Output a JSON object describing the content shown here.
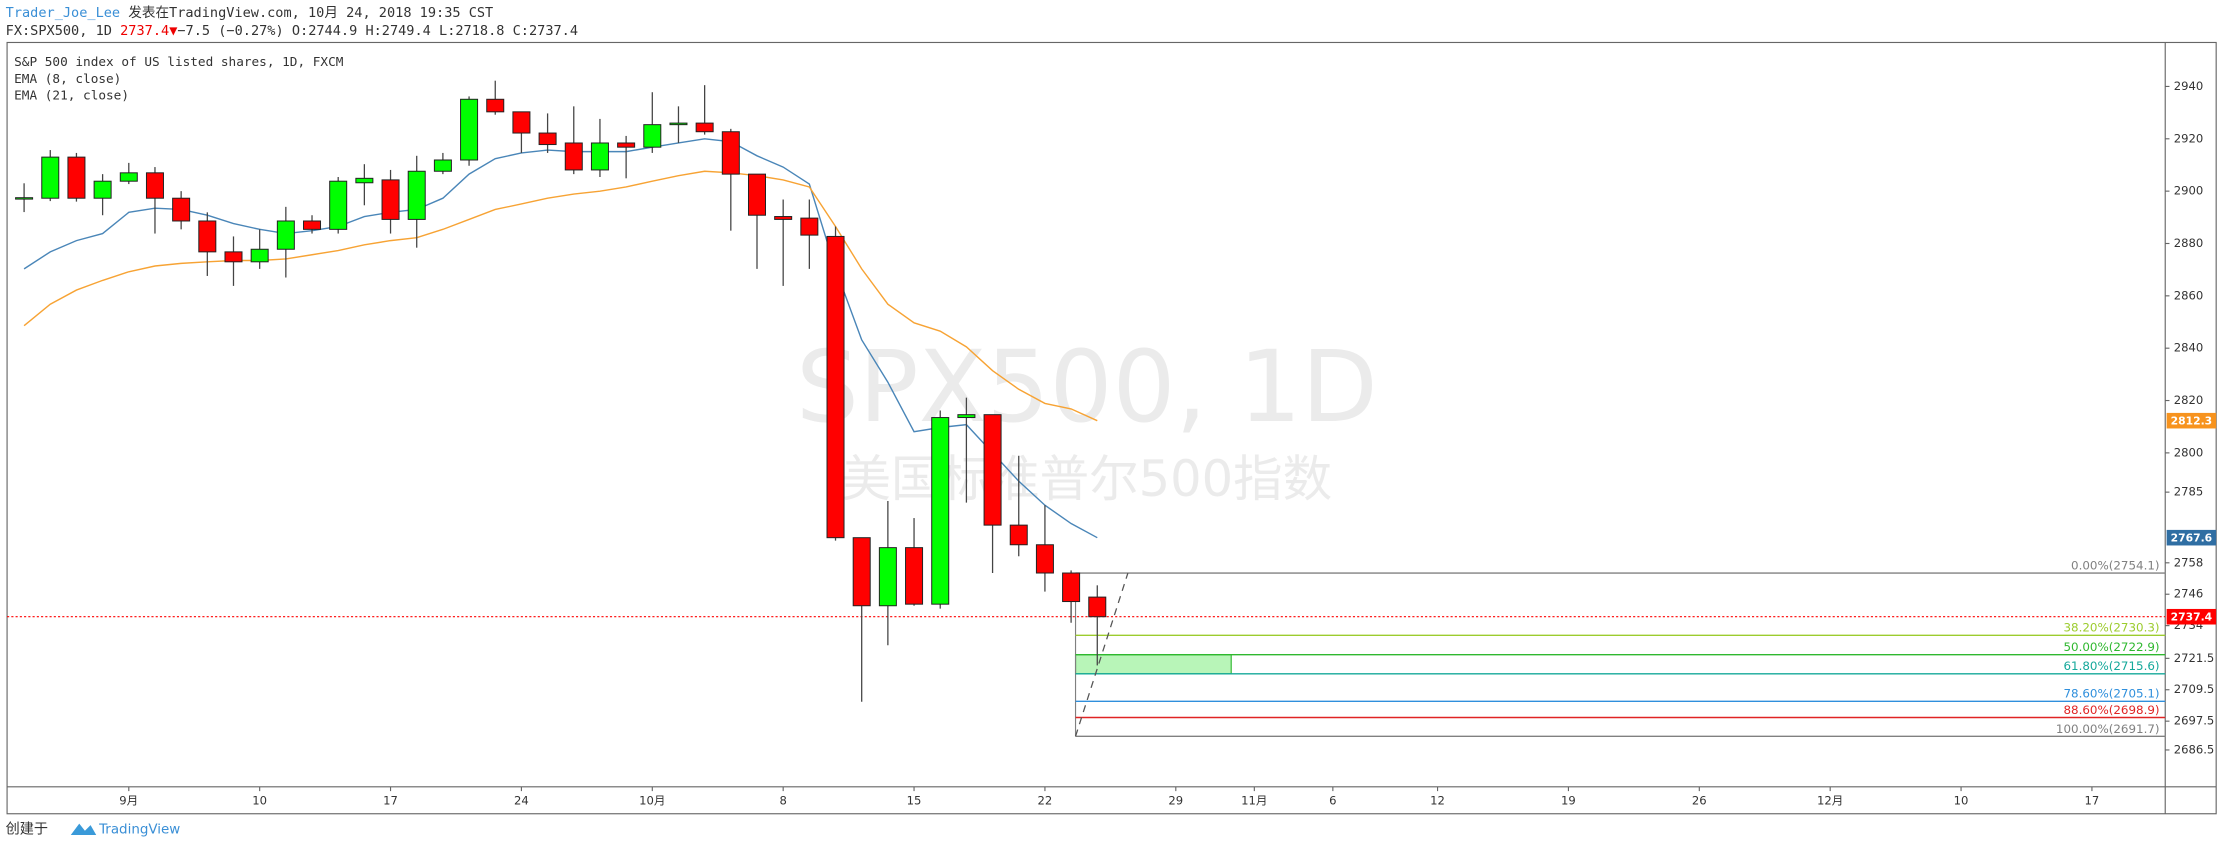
{
  "header": {
    "author": "Trader_Joe_Lee",
    "published": " 发表在TradingView.com, 10月 24, 2018 19:35 CST",
    "symbol": "FX:SPX500, 1D",
    "last": "2737.4",
    "arrow": "▼",
    "change": "−7.5 (−0.27%)",
    "open": "O:2744.9",
    "high": "H:2749.4",
    "low": "L:2718.8",
    "close": "C:2737.4"
  },
  "footer": {
    "created": "创建于",
    "brand": "TradingView"
  },
  "chart_data": {
    "type": "candlestick",
    "title": "S&P 500 index of US listed shares, 1D, FXCM",
    "watermark": [
      "SPX500, 1D",
      "美国标准普尔500指数"
    ],
    "up_color": "#00ff00",
    "down_color": "#ff0000",
    "x": [
      0,
      1,
      2,
      3,
      4,
      5,
      6,
      7,
      8,
      9,
      10,
      11,
      12,
      13,
      14,
      15,
      16,
      17,
      18,
      19,
      20,
      21,
      22,
      23,
      24,
      25,
      26,
      27,
      28,
      29,
      30,
      31,
      32,
      33,
      34,
      35,
      36,
      37,
      38,
      39,
      40,
      41
    ],
    "open": [
      2897,
      2897.3,
      2913,
      2897.3,
      2903.8,
      2907,
      2897.3,
      2888.6,
      2876.8,
      2873,
      2877.8,
      2888.6,
      2885.4,
      2903.2,
      2904.3,
      2889.2,
      2907.6,
      2911.9,
      2935.1,
      2930.3,
      2922.2,
      2918.4,
      2908.1,
      2918.4,
      2916.8,
      2925.4,
      2926,
      2922.7,
      2906.5,
      2890.3,
      2889.7,
      2882.7,
      2767.6,
      2741.6,
      2763.8,
      2742.2,
      2813.5,
      2814.6,
      2772.4,
      2764.9,
      2754.1,
      2744.9
    ],
    "high": [
      2903,
      2915.7,
      2914.6,
      2906.5,
      2910.8,
      2909.2,
      2900,
      2891.9,
      2882.7,
      2885.4,
      2894,
      2890.8,
      2905.4,
      2910.3,
      2908.1,
      2913.5,
      2914.6,
      2936.2,
      2942.2,
      2930.3,
      2929.7,
      2932.4,
      2927.6,
      2921.1,
      2937.8,
      2932.4,
      2940.5,
      2923.8,
      2906.5,
      2896.8,
      2896.8,
      2886.5,
      2767.6,
      2781.6,
      2775.1,
      2816.2,
      2821.1,
      2814.6,
      2798.9,
      2780,
      2755.1,
      2749.4
    ],
    "low": [
      2892,
      2896.2,
      2896,
      2890.8,
      2902.7,
      2883.8,
      2885.4,
      2867.6,
      2863.8,
      2870.3,
      2867,
      2883.8,
      2883.8,
      2894.6,
      2883.8,
      2878.4,
      2906.5,
      2909.7,
      2929.2,
      2914.6,
      2914.6,
      2906.5,
      2905.4,
      2904.9,
      2914.6,
      2918.4,
      2921.6,
      2884.9,
      2870.3,
      2863.8,
      2870.3,
      2766.5,
      2704.9,
      2726.5,
      2741.6,
      2740.5,
      2781,
      2754.1,
      2760.5,
      2747,
      2735.1,
      2718.8
    ],
    "close": [
      2897.5,
      2913,
      2897.3,
      2903.8,
      2907,
      2897.3,
      2888.6,
      2876.8,
      2873,
      2877.8,
      2888.6,
      2885.4,
      2903.8,
      2904.9,
      2889.2,
      2907.6,
      2911.9,
      2935.1,
      2930.3,
      2922.2,
      2917.8,
      2908.1,
      2918.4,
      2916.8,
      2925.4,
      2926,
      2922.7,
      2906.5,
      2890.8,
      2889.2,
      2883.2,
      2767.6,
      2741.6,
      2763.8,
      2742.2,
      2813.5,
      2814.6,
      2772.4,
      2764.9,
      2754.1,
      2743.2,
      2737.4
    ],
    "series": [
      {
        "name": "EMA (8, close)",
        "color": "#4a86b8",
        "values": [
          2870.3,
          2876.8,
          2881.1,
          2883.8,
          2891.9,
          2893.5,
          2893,
          2890.8,
          2887.6,
          2885.4,
          2883.8,
          2884.9,
          2886.5,
          2890.3,
          2891.9,
          2893,
          2897.3,
          2906.5,
          2912.4,
          2914.6,
          2915.7,
          2915.1,
          2915.1,
          2915.1,
          2916.8,
          2918.4,
          2920,
          2918.9,
          2913.5,
          2909.2,
          2902.7,
          2870.3,
          2843.2,
          2827,
          2808.1,
          2809.7,
          2810.8,
          2800,
          2789.2,
          2780,
          2773,
          2767.6
        ]
      },
      {
        "name": "EMA (21, close)",
        "color": "#f7a334",
        "values": [
          2848.6,
          2856.8,
          2862.2,
          2865.9,
          2869.2,
          2871.4,
          2872.4,
          2873,
          2873.5,
          2873.5,
          2874.1,
          2875.7,
          2877.3,
          2879.5,
          2881.1,
          2882.2,
          2885.4,
          2889.2,
          2893,
          2895.1,
          2897.3,
          2898.9,
          2900,
          2901.6,
          2903.8,
          2905.9,
          2907.6,
          2907,
          2905.9,
          2904.3,
          2901.6,
          2886.5,
          2870.3,
          2856.8,
          2849.7,
          2846.5,
          2840.5,
          2831.4,
          2824.3,
          2818.9,
          2816.8,
          2812.3
        ]
      }
    ],
    "xlim": [
      -0.65,
      81.8
    ],
    "xticks": [
      {
        "value": 4,
        "label": "9月"
      },
      {
        "value": 9,
        "label": "10"
      },
      {
        "value": 14,
        "label": "17"
      },
      {
        "value": 19,
        "label": "24"
      },
      {
        "value": 24,
        "label": "10月"
      },
      {
        "value": 29,
        "label": "8"
      },
      {
        "value": 34,
        "label": "15"
      },
      {
        "value": 39,
        "label": "22"
      },
      {
        "value": 44,
        "label": "29"
      },
      {
        "value": 47,
        "label": "11月"
      },
      {
        "value": 50,
        "label": "6"
      },
      {
        "value": 54,
        "label": "12"
      },
      {
        "value": 59,
        "label": "19"
      },
      {
        "value": 64,
        "label": "26"
      },
      {
        "value": 69,
        "label": "12月"
      },
      {
        "value": 74,
        "label": "10"
      },
      {
        "value": 79,
        "label": "17"
      }
    ],
    "ylim": [
      2672.4,
      2956.8
    ],
    "yticks": [
      2940,
      2920,
      2900,
      2880,
      2860,
      2840,
      2820,
      2800,
      2785,
      2758,
      2746,
      2734,
      2721.5,
      2709.5,
      2697.5,
      2686.5
    ],
    "fib": {
      "levels": [
        {
          "value": 2754.1,
          "label": "0.00%(2754.1)",
          "color": "#808080"
        },
        {
          "value": 2730.3,
          "label": "38.20%(2730.3)",
          "color": "#9ccc2e"
        },
        {
          "value": 2722.9,
          "label": "50.00%(2722.9)",
          "color": "#2fb82f"
        },
        {
          "value": 2715.6,
          "label": "61.80%(2715.6)",
          "color": "#14a89a"
        },
        {
          "value": 2705.1,
          "label": "78.60%(2705.1)",
          "color": "#2f8fdc"
        },
        {
          "value": 2698.9,
          "label": "88.60%(2698.9)",
          "color": "#e02424"
        },
        {
          "value": 2691.7,
          "label": "100.00%(2691.7)",
          "color": "#808080"
        }
      ]
    },
    "price_tags": [
      {
        "value": 2812.3,
        "color": "#f7931e"
      },
      {
        "value": 2767.6,
        "color": "#2f6ea3"
      },
      {
        "value": 2737.4,
        "color": "#ff0000"
      }
    ]
  }
}
